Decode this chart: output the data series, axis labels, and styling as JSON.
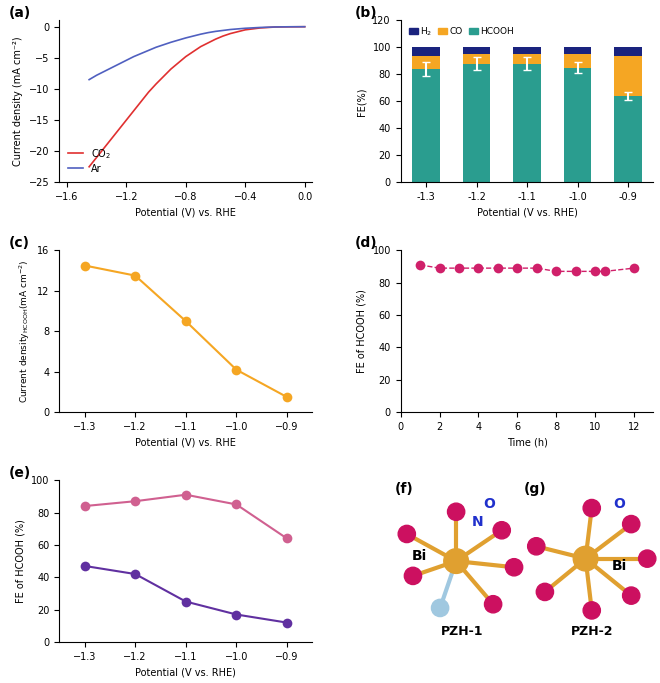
{
  "panel_a": {
    "co2_x": [
      -1.45,
      -1.4,
      -1.35,
      -1.3,
      -1.25,
      -1.2,
      -1.15,
      -1.1,
      -1.05,
      -1.0,
      -0.95,
      -0.9,
      -0.85,
      -0.8,
      -0.75,
      -0.7,
      -0.65,
      -0.6,
      -0.55,
      -0.5,
      -0.45,
      -0.4,
      -0.35,
      -0.3,
      -0.2,
      -0.1,
      0.0
    ],
    "co2_y": [
      -22.5,
      -21.0,
      -19.5,
      -18.0,
      -16.5,
      -15.0,
      -13.5,
      -12.0,
      -10.5,
      -9.2,
      -8.0,
      -6.8,
      -5.8,
      -4.8,
      -4.0,
      -3.2,
      -2.6,
      -2.0,
      -1.5,
      -1.1,
      -0.8,
      -0.5,
      -0.35,
      -0.2,
      -0.05,
      -0.02,
      0.0
    ],
    "ar_x": [
      -1.45,
      -1.4,
      -1.35,
      -1.3,
      -1.25,
      -1.2,
      -1.15,
      -1.1,
      -1.05,
      -1.0,
      -0.95,
      -0.9,
      -0.85,
      -0.8,
      -0.75,
      -0.7,
      -0.65,
      -0.6,
      -0.5,
      -0.4,
      -0.3,
      -0.2,
      -0.1,
      0.0
    ],
    "ar_y": [
      -8.5,
      -7.8,
      -7.2,
      -6.6,
      -6.0,
      -5.4,
      -4.8,
      -4.3,
      -3.8,
      -3.3,
      -2.9,
      -2.5,
      -2.15,
      -1.8,
      -1.5,
      -1.2,
      -0.95,
      -0.75,
      -0.45,
      -0.25,
      -0.12,
      -0.04,
      -0.01,
      0.0
    ],
    "co2_color": "#e03030",
    "ar_color": "#5060c0",
    "xlabel": "Potential (V) vs. RHE",
    "ylabel": "Current density (mA cm⁻²)",
    "ylim": [
      -25,
      1
    ],
    "xlim": [
      -1.65,
      0.05
    ],
    "yticks": [
      0,
      -5,
      -10,
      -15,
      -20,
      -25
    ],
    "xticks": [
      -1.6,
      -1.2,
      -0.8,
      -0.4,
      0.0
    ]
  },
  "panel_b": {
    "potentials": [
      "-1.3",
      "-1.2",
      "-1.1",
      "-1.0",
      "-0.9"
    ],
    "hcooh": [
      84,
      88,
      88,
      85,
      64
    ],
    "co": [
      10,
      7,
      7,
      10,
      30
    ],
    "h2": [
      6,
      5,
      5,
      5,
      6
    ],
    "hcooh_err": [
      5,
      5,
      5,
      4,
      3
    ],
    "co_color": "#f5a623",
    "h2_color": "#1a237e",
    "hcooh_color": "#2a9d8f",
    "xlabel": "Potential (V vs. RHE)",
    "ylabel": "FE(%)",
    "ylim": [
      0,
      120
    ],
    "yticks": [
      0,
      20,
      40,
      60,
      80,
      100,
      120
    ]
  },
  "panel_c": {
    "x": [
      -1.3,
      -1.2,
      -1.1,
      -1.0,
      -0.9
    ],
    "y": [
      14.5,
      13.5,
      9.0,
      4.2,
      1.5
    ],
    "color": "#f5a623",
    "xlabel": "Potential (V) vs. RHE",
    "ylim": [
      0,
      16
    ],
    "yticks": [
      0,
      4,
      8,
      12,
      16
    ],
    "xticks": [
      -1.3,
      -1.2,
      -1.1,
      -1.0,
      -0.9
    ]
  },
  "panel_d": {
    "x": [
      1,
      2,
      3,
      4,
      5,
      6,
      7,
      8,
      9,
      10,
      10.5,
      12
    ],
    "y": [
      91,
      89,
      89,
      89,
      89,
      89,
      89,
      87,
      87,
      87,
      87,
      89
    ],
    "color": "#d0206a",
    "xlabel": "Time (h)",
    "ylabel": "FE of HCOOH (%)",
    "ylim": [
      0,
      100
    ],
    "yticks": [
      0,
      20,
      40,
      60,
      80,
      100
    ],
    "xlim": [
      0,
      13
    ],
    "xticks": [
      0,
      2,
      4,
      6,
      8,
      10,
      12
    ]
  },
  "panel_e": {
    "x": [
      -1.3,
      -1.2,
      -1.1,
      -1.0,
      -0.9
    ],
    "y_pink": [
      84,
      87,
      91,
      85,
      64
    ],
    "y_purple": [
      47,
      42,
      25,
      17,
      12
    ],
    "pink_color": "#d06090",
    "purple_color": "#6030a0",
    "xlabel": "Potential (V vs. RHE)",
    "ylabel": "FE of HCOOH (%)",
    "ylim": [
      0,
      100
    ],
    "yticks": [
      0,
      20,
      40,
      60,
      80,
      100
    ],
    "xticks": [
      -1.3,
      -1.2,
      -1.1,
      -1.0,
      -0.9
    ]
  },
  "panel_f": {
    "label": "PZH-1",
    "bi_color": "#e0a030",
    "o_color": "#cc1060",
    "n_color": "#a0c8e0",
    "bond_color": "#e0a030",
    "n_bond_color": "#a0c8e0",
    "n_label_color": "#2030cc",
    "o_label_color": "#2030cc"
  },
  "panel_g": {
    "label": "PZH-2",
    "bi_color": "#e0a030",
    "o_color": "#cc1060",
    "bond_color": "#e0a030",
    "o_label_color": "#2030cc"
  }
}
